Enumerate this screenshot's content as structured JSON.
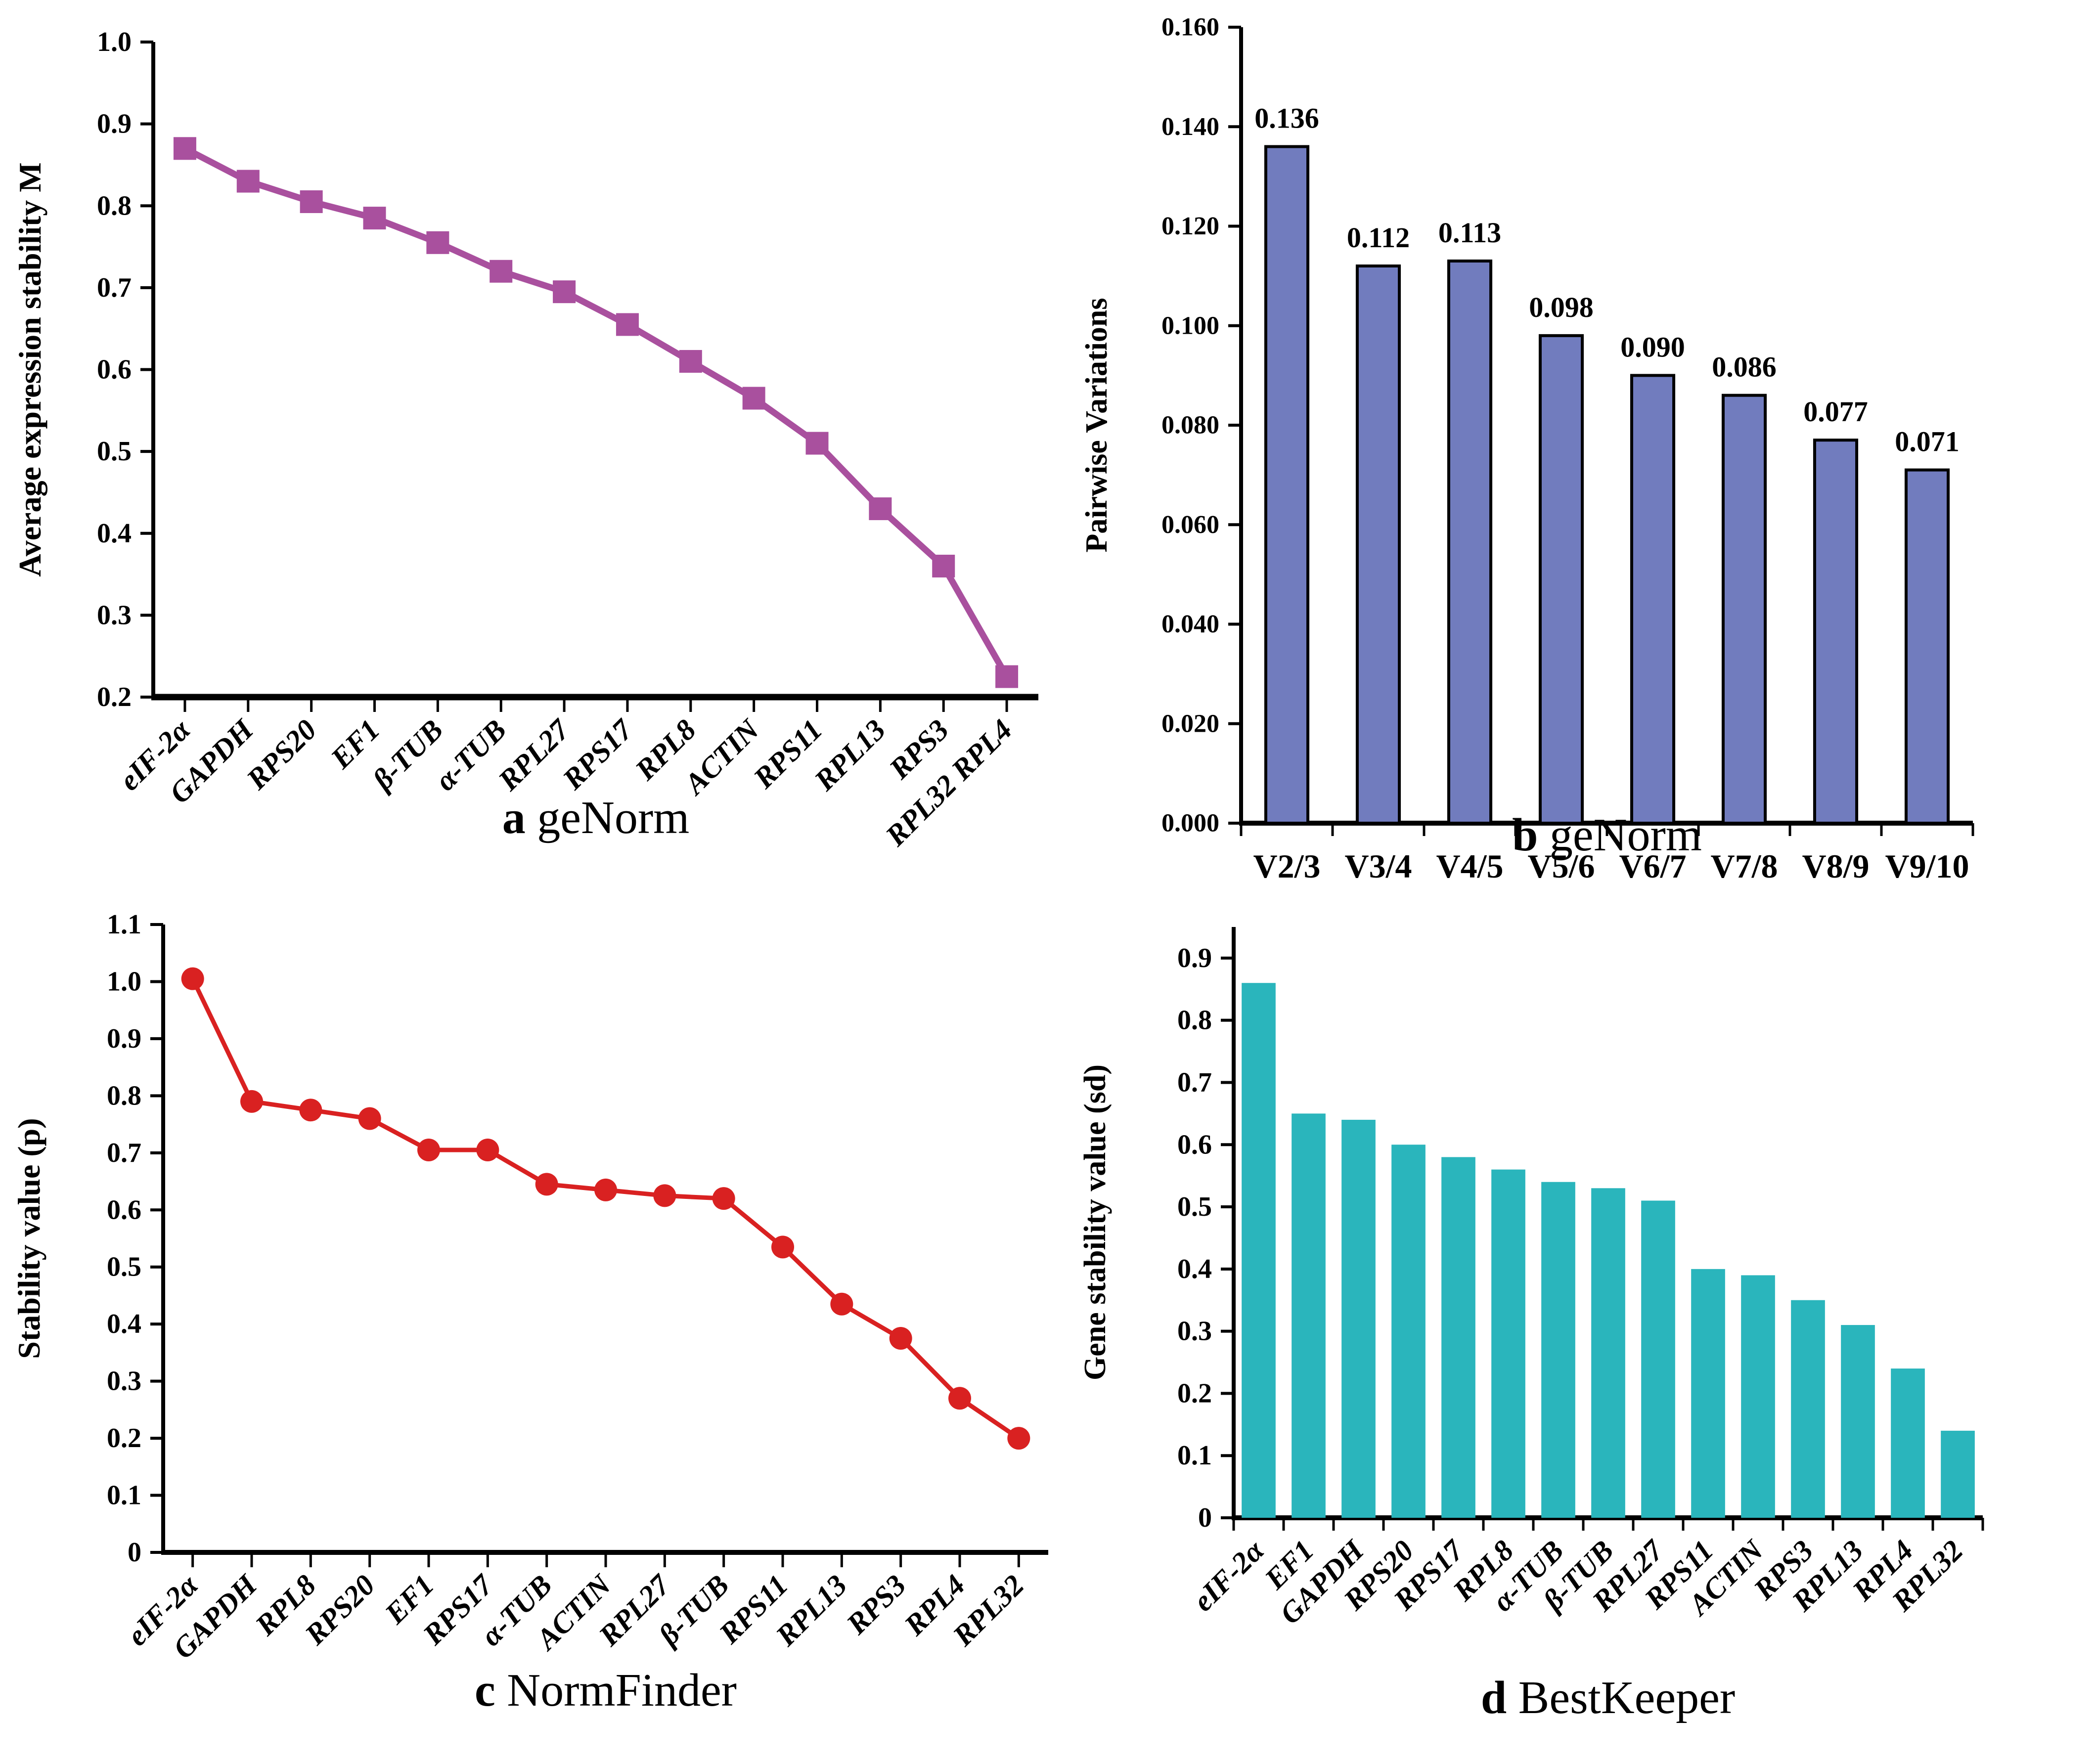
{
  "chart_data": [
    {
      "id": "a",
      "type": "line",
      "caption_letter": "a",
      "caption_text": "geNorm",
      "ylabel": "Average expression stability M",
      "ylim": [
        0.2,
        1.0
      ],
      "ytick_labels": [
        "0.2",
        "0.3",
        "0.4",
        "0.5",
        "0.6",
        "0.7",
        "0.8",
        "0.9",
        "1.0"
      ],
      "categories": [
        "eIF-2α",
        "GAPDH",
        "RPS20",
        "EF1",
        "β-TUB",
        "α-TUB",
        "RPL27",
        "RPS17",
        "RPL8",
        "ACTIN",
        "RPS11",
        "RPL13",
        "RPS3",
        "RPL32 RPL4"
      ],
      "values": [
        0.87,
        0.83,
        0.805,
        0.785,
        0.755,
        0.72,
        0.695,
        0.655,
        0.61,
        0.565,
        0.51,
        0.43,
        0.36,
        0.225
      ],
      "series_color": "#a9509e",
      "marker": "square",
      "grid": false,
      "legend": "none"
    },
    {
      "id": "b",
      "type": "bar",
      "caption_letter": "b",
      "caption_text": "geNorm",
      "ylabel": "Pairwise Variations",
      "ylim": [
        0,
        0.16
      ],
      "ytick_labels": [
        "0.000",
        "0.020",
        "0.040",
        "0.060",
        "0.080",
        "0.100",
        "0.120",
        "0.140",
        "0.160"
      ],
      "categories": [
        "V2/3",
        "V3/4",
        "V4/5",
        "V5/6",
        "V6/7",
        "V7/8",
        "V8/9",
        "V9/10"
      ],
      "values": [
        0.136,
        0.112,
        0.113,
        0.098,
        0.09,
        0.086,
        0.077,
        0.071
      ],
      "value_labels": [
        "0.136",
        "0.112",
        "0.113",
        "0.098",
        "0.090",
        "0.086",
        "0.077",
        "0.071"
      ],
      "series_color": "#717cbe",
      "bar_border_color": "#000000",
      "grid": false,
      "legend": "none"
    },
    {
      "id": "c",
      "type": "line",
      "caption_letter": "c",
      "caption_text": "NormFinder",
      "ylabel": "Stability value (p)",
      "ylim": [
        0,
        1.1
      ],
      "ytick_labels": [
        "0",
        "0.1",
        "0.2",
        "0.3",
        "0.4",
        "0.5",
        "0.6",
        "0.7",
        "0.8",
        "0.9",
        "1.0",
        "1.1"
      ],
      "categories": [
        "eIF-2α",
        "GAPDH",
        "RPL8",
        "RPS20",
        "EF1",
        "RPS17",
        "α-TUB",
        "ACTIN",
        "RPL27",
        "β-TUB",
        "RPS11",
        "RPL13",
        "RPS3",
        "RPL4",
        "RPL32"
      ],
      "values": [
        1.005,
        0.79,
        0.775,
        0.76,
        0.705,
        0.705,
        0.645,
        0.635,
        0.625,
        0.62,
        0.535,
        0.435,
        0.375,
        0.27,
        0.2
      ],
      "series_color": "#d92121",
      "marker": "circle",
      "grid": false,
      "legend": "none"
    },
    {
      "id": "d",
      "type": "bar",
      "caption_letter": "d",
      "caption_text": "BestKeeper",
      "ylabel": "Gene stability value (sd)",
      "ylim": [
        0,
        0.95
      ],
      "ytick_labels": [
        "0",
        "0.1",
        "0.2",
        "0.3",
        "0.4",
        "0.5",
        "0.6",
        "0.7",
        "0.8",
        "0.9"
      ],
      "categories": [
        "eIF-2α",
        "EF1",
        "GAPDH",
        "RPS20",
        "RPS17",
        "RPL8",
        "α-TUB",
        "β-TUB",
        "RPL27",
        "RPS11",
        "ACTIN",
        "RPS3",
        "RPL13",
        "RPL4",
        "RPL32"
      ],
      "values": [
        0.86,
        0.65,
        0.64,
        0.6,
        0.58,
        0.56,
        0.54,
        0.53,
        0.51,
        0.4,
        0.39,
        0.35,
        0.31,
        0.24,
        0.14
      ],
      "series_color": "#2ab5bc",
      "grid": false,
      "legend": "none"
    }
  ]
}
